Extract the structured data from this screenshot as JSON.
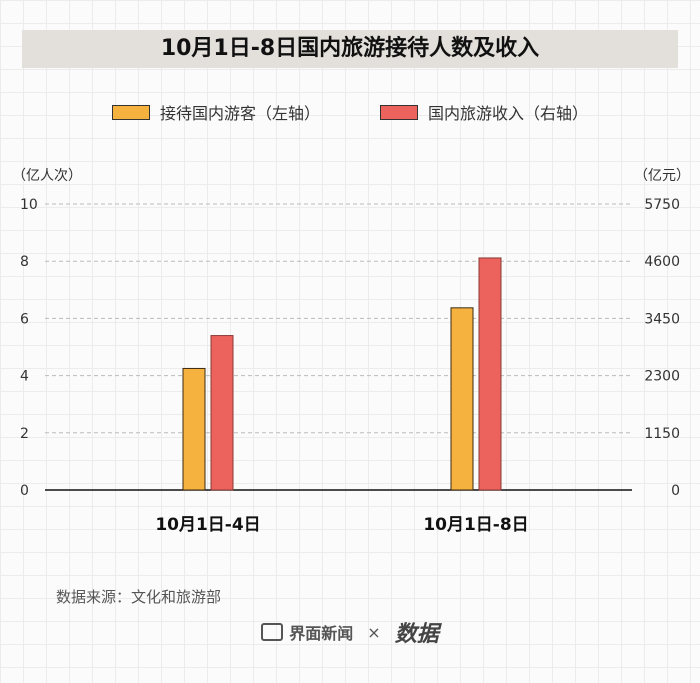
{
  "chart_data": {
    "type": "bar",
    "title": "10月1日-8日国内旅游接待人数及收入",
    "categories": [
      "10月1日-4日",
      "10月1日-8日"
    ],
    "series": [
      {
        "name": "接待国内游客（左轴）",
        "axis": "left",
        "color": "#f6b23f",
        "values": [
          4.25,
          6.37
        ]
      },
      {
        "name": "国内旅游收入（右轴）",
        "axis": "right",
        "color": "#ec625c",
        "values": [
          3105,
          4665.6
        ]
      }
    ],
    "y_left": {
      "label": "（亿人次）",
      "ylim": [
        0,
        10
      ],
      "ticks": [
        "0",
        "2",
        "4",
        "6",
        "8",
        "10"
      ]
    },
    "y_right": {
      "label": "（亿元）",
      "ylim": [
        0,
        5750
      ],
      "ticks": [
        "0",
        "1150",
        "2300",
        "3450",
        "4600",
        "5750"
      ]
    },
    "grid": true,
    "legend": "top"
  },
  "source": "数据来源：文化和旅游部",
  "footer": {
    "brand": "界面新闻",
    "separator": "×",
    "partner": "数据"
  }
}
